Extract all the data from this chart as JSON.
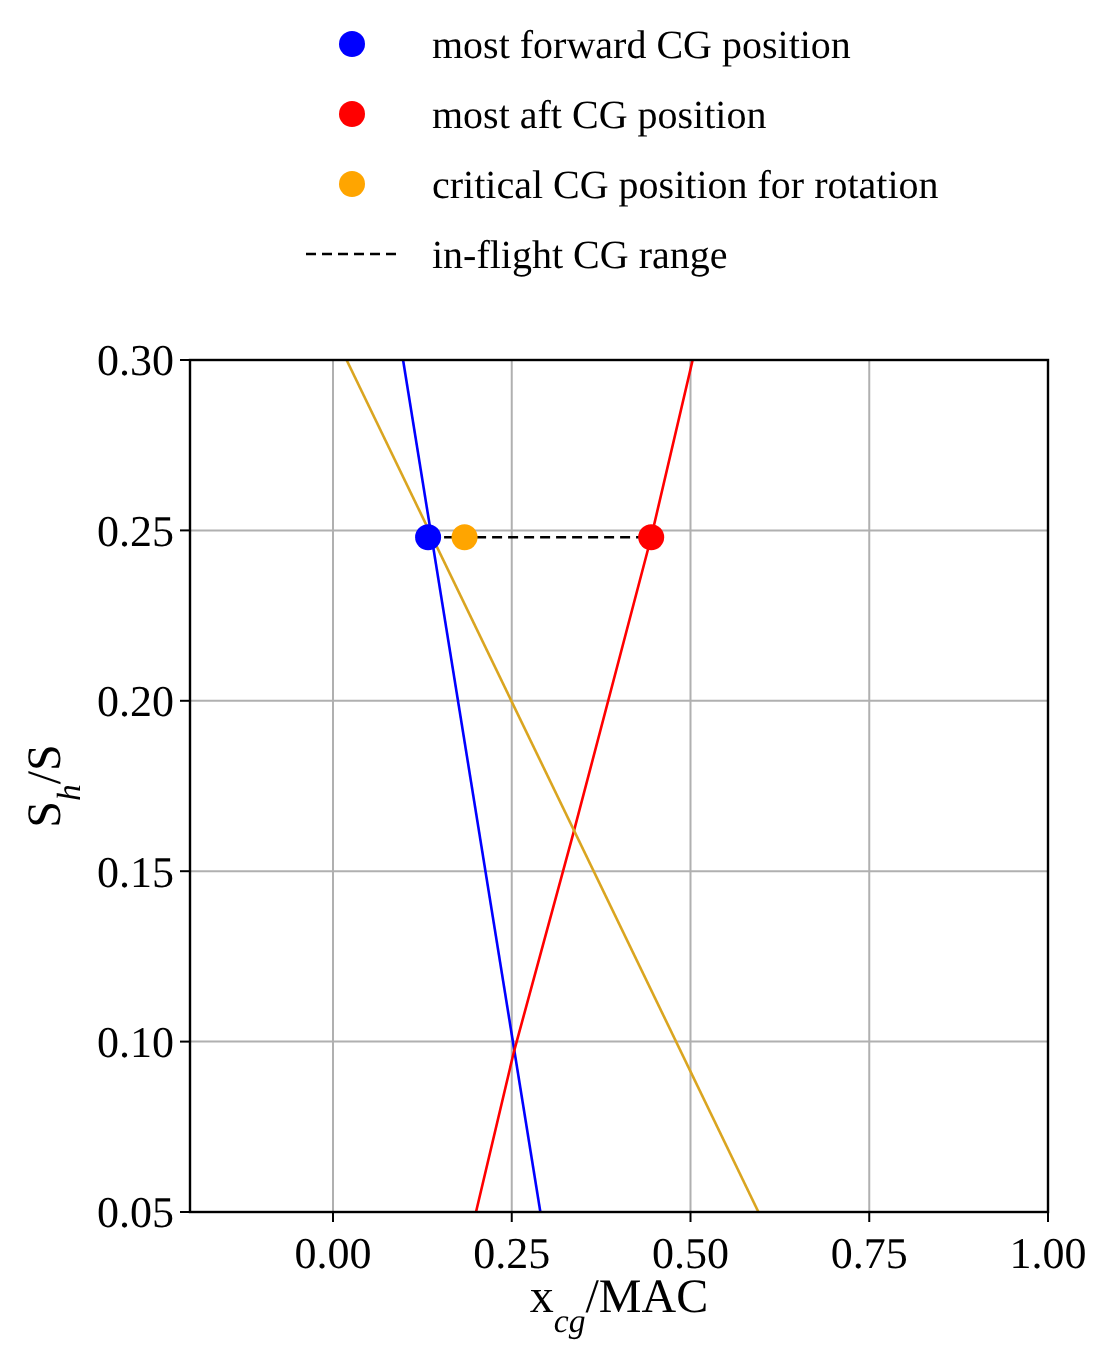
{
  "chart_data": {
    "type": "line",
    "xlabel": "x$_{cg}$/MAC",
    "ylabel": "S$_{h}$/S",
    "xlim": [
      -0.2,
      1.0
    ],
    "ylim": [
      0.05,
      0.3
    ],
    "xticks": [
      {
        "value": 0,
        "label": "0.00"
      },
      {
        "value": 0.25,
        "label": "0.25"
      },
      {
        "value": 0.5,
        "label": "0.50"
      },
      {
        "value": 0.75,
        "label": "0.75"
      },
      {
        "value": 1,
        "label": "1.00"
      }
    ],
    "yticks": [
      {
        "value": 0.05,
        "label": "0.05"
      },
      {
        "value": 0.1,
        "label": "0.10"
      },
      {
        "value": 0.15,
        "label": "0.15"
      },
      {
        "value": 0.2,
        "label": "0.20"
      },
      {
        "value": 0.25,
        "label": "0.25"
      },
      {
        "value": 0.3,
        "label": "0.30"
      }
    ],
    "grid": true,
    "legend": "top",
    "series": [
      {
        "color": "#0000ff",
        "x": [
          0.098,
          0.29
        ],
        "values": [
          0.3,
          0.05
        ]
      },
      {
        "color": "#ff0000",
        "x": [
          0.2,
          0.253,
          0.336,
          0.445,
          0.503
        ],
        "values": [
          0.05,
          0.097,
          0.161,
          0.248,
          0.3
        ]
      },
      {
        "color": "#daa520",
        "x": [
          0.019,
          0.595
        ],
        "values": [
          0.3,
          0.05
        ]
      },
      {
        "name": "in-flight CG range",
        "color": "#000000",
        "line_style": "dashed",
        "x": [
          0.133,
          0.445
        ],
        "values": [
          0.248,
          0.248
        ]
      },
      {
        "type": "scatter",
        "name": "most forward CG position",
        "color": "#0000ff",
        "marker": "circle",
        "x": [
          0.133
        ],
        "values": [
          0.248
        ]
      },
      {
        "type": "scatter",
        "name": "most aft CG position",
        "color": "#ff0000",
        "marker": "circle",
        "x": [
          0.445
        ],
        "values": [
          0.248
        ]
      },
      {
        "type": "scatter",
        "name": "critical CG position for rotation",
        "color": "#ffa500",
        "marker": "circle",
        "x": [
          0.184
        ],
        "values": [
          0.248
        ]
      }
    ]
  }
}
